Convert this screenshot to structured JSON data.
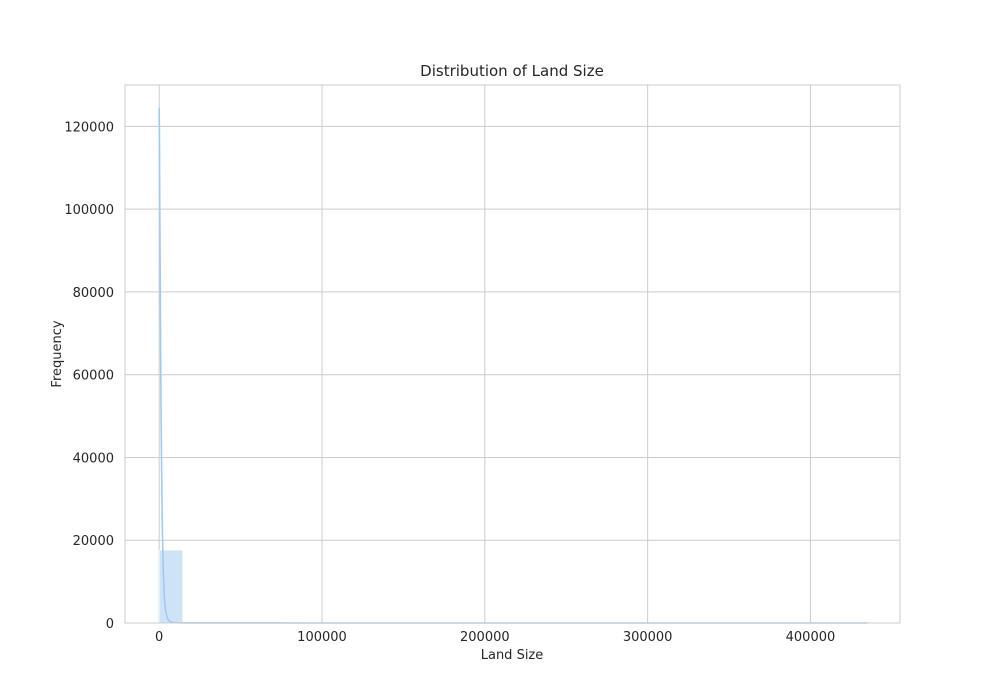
{
  "chart_data": {
    "type": "bar",
    "title": "Distribution of Land Size",
    "xlabel": "Land Size",
    "ylabel": "Frequency",
    "xlim": [
      -21000,
      455000
    ],
    "ylim": [
      0,
      130000
    ],
    "xticks": [
      0,
      100000,
      200000,
      300000,
      400000
    ],
    "yticks": [
      0,
      20000,
      40000,
      60000,
      80000,
      100000,
      120000
    ],
    "grid": true,
    "bar_color": "#cfe3f7",
    "kde_color": "#a1c9f4",
    "bins": [
      {
        "x0": 0,
        "x1": 14500,
        "count": 17600
      },
      {
        "x0": 14500,
        "x1": 29000,
        "count": 30
      },
      {
        "x0": 29000,
        "x1": 43500,
        "count": 10
      },
      {
        "x0": 43500,
        "x1": 58000,
        "count": 5
      },
      {
        "x0": 58000,
        "x1": 72500,
        "count": 3
      },
      {
        "x0": 72500,
        "x1": 87000,
        "count": 2
      },
      {
        "x0": 87000,
        "x1": 101500,
        "count": 2
      },
      {
        "x0": 101500,
        "x1": 116000,
        "count": 1
      },
      {
        "x0": 116000,
        "x1": 130500,
        "count": 1
      },
      {
        "x0": 130500,
        "x1": 145000,
        "count": 1
      },
      {
        "x0": 145000,
        "x1": 159500,
        "count": 1
      },
      {
        "x0": 159500,
        "x1": 174000,
        "count": 1
      },
      {
        "x0": 174000,
        "x1": 188500,
        "count": 0
      },
      {
        "x0": 188500,
        "x1": 203000,
        "count": 1
      },
      {
        "x0": 203000,
        "x1": 217500,
        "count": 0
      },
      {
        "x0": 217500,
        "x1": 232000,
        "count": 0
      },
      {
        "x0": 232000,
        "x1": 246500,
        "count": 0
      },
      {
        "x0": 246500,
        "x1": 261000,
        "count": 0
      },
      {
        "x0": 261000,
        "x1": 275500,
        "count": 0
      },
      {
        "x0": 275500,
        "x1": 290000,
        "count": 0
      },
      {
        "x0": 290000,
        "x1": 304500,
        "count": 0
      },
      {
        "x0": 304500,
        "x1": 319000,
        "count": 0
      },
      {
        "x0": 319000,
        "x1": 333500,
        "count": 0
      },
      {
        "x0": 333500,
        "x1": 348000,
        "count": 0
      },
      {
        "x0": 348000,
        "x1": 362500,
        "count": 0
      },
      {
        "x0": 362500,
        "x1": 377000,
        "count": 0
      },
      {
        "x0": 377000,
        "x1": 391500,
        "count": 0
      },
      {
        "x0": 391500,
        "x1": 406000,
        "count": 0
      },
      {
        "x0": 406000,
        "x1": 420500,
        "count": 0
      },
      {
        "x0": 420500,
        "x1": 435000,
        "count": 1
      }
    ],
    "kde": {
      "x": [
        0,
        150,
        300,
        600,
        900,
        1200,
        1600,
        2000,
        2500,
        3000,
        3500,
        4000,
        5000,
        6000,
        8000,
        12000,
        20000,
        50000,
        100000,
        200000,
        300000,
        435000
      ],
      "y": [
        124500,
        118000,
        105000,
        85000,
        65000,
        48000,
        33000,
        22000,
        13000,
        7500,
        4500,
        2800,
        1200,
        500,
        150,
        40,
        10,
        5,
        3,
        2,
        2,
        2
      ]
    }
  }
}
